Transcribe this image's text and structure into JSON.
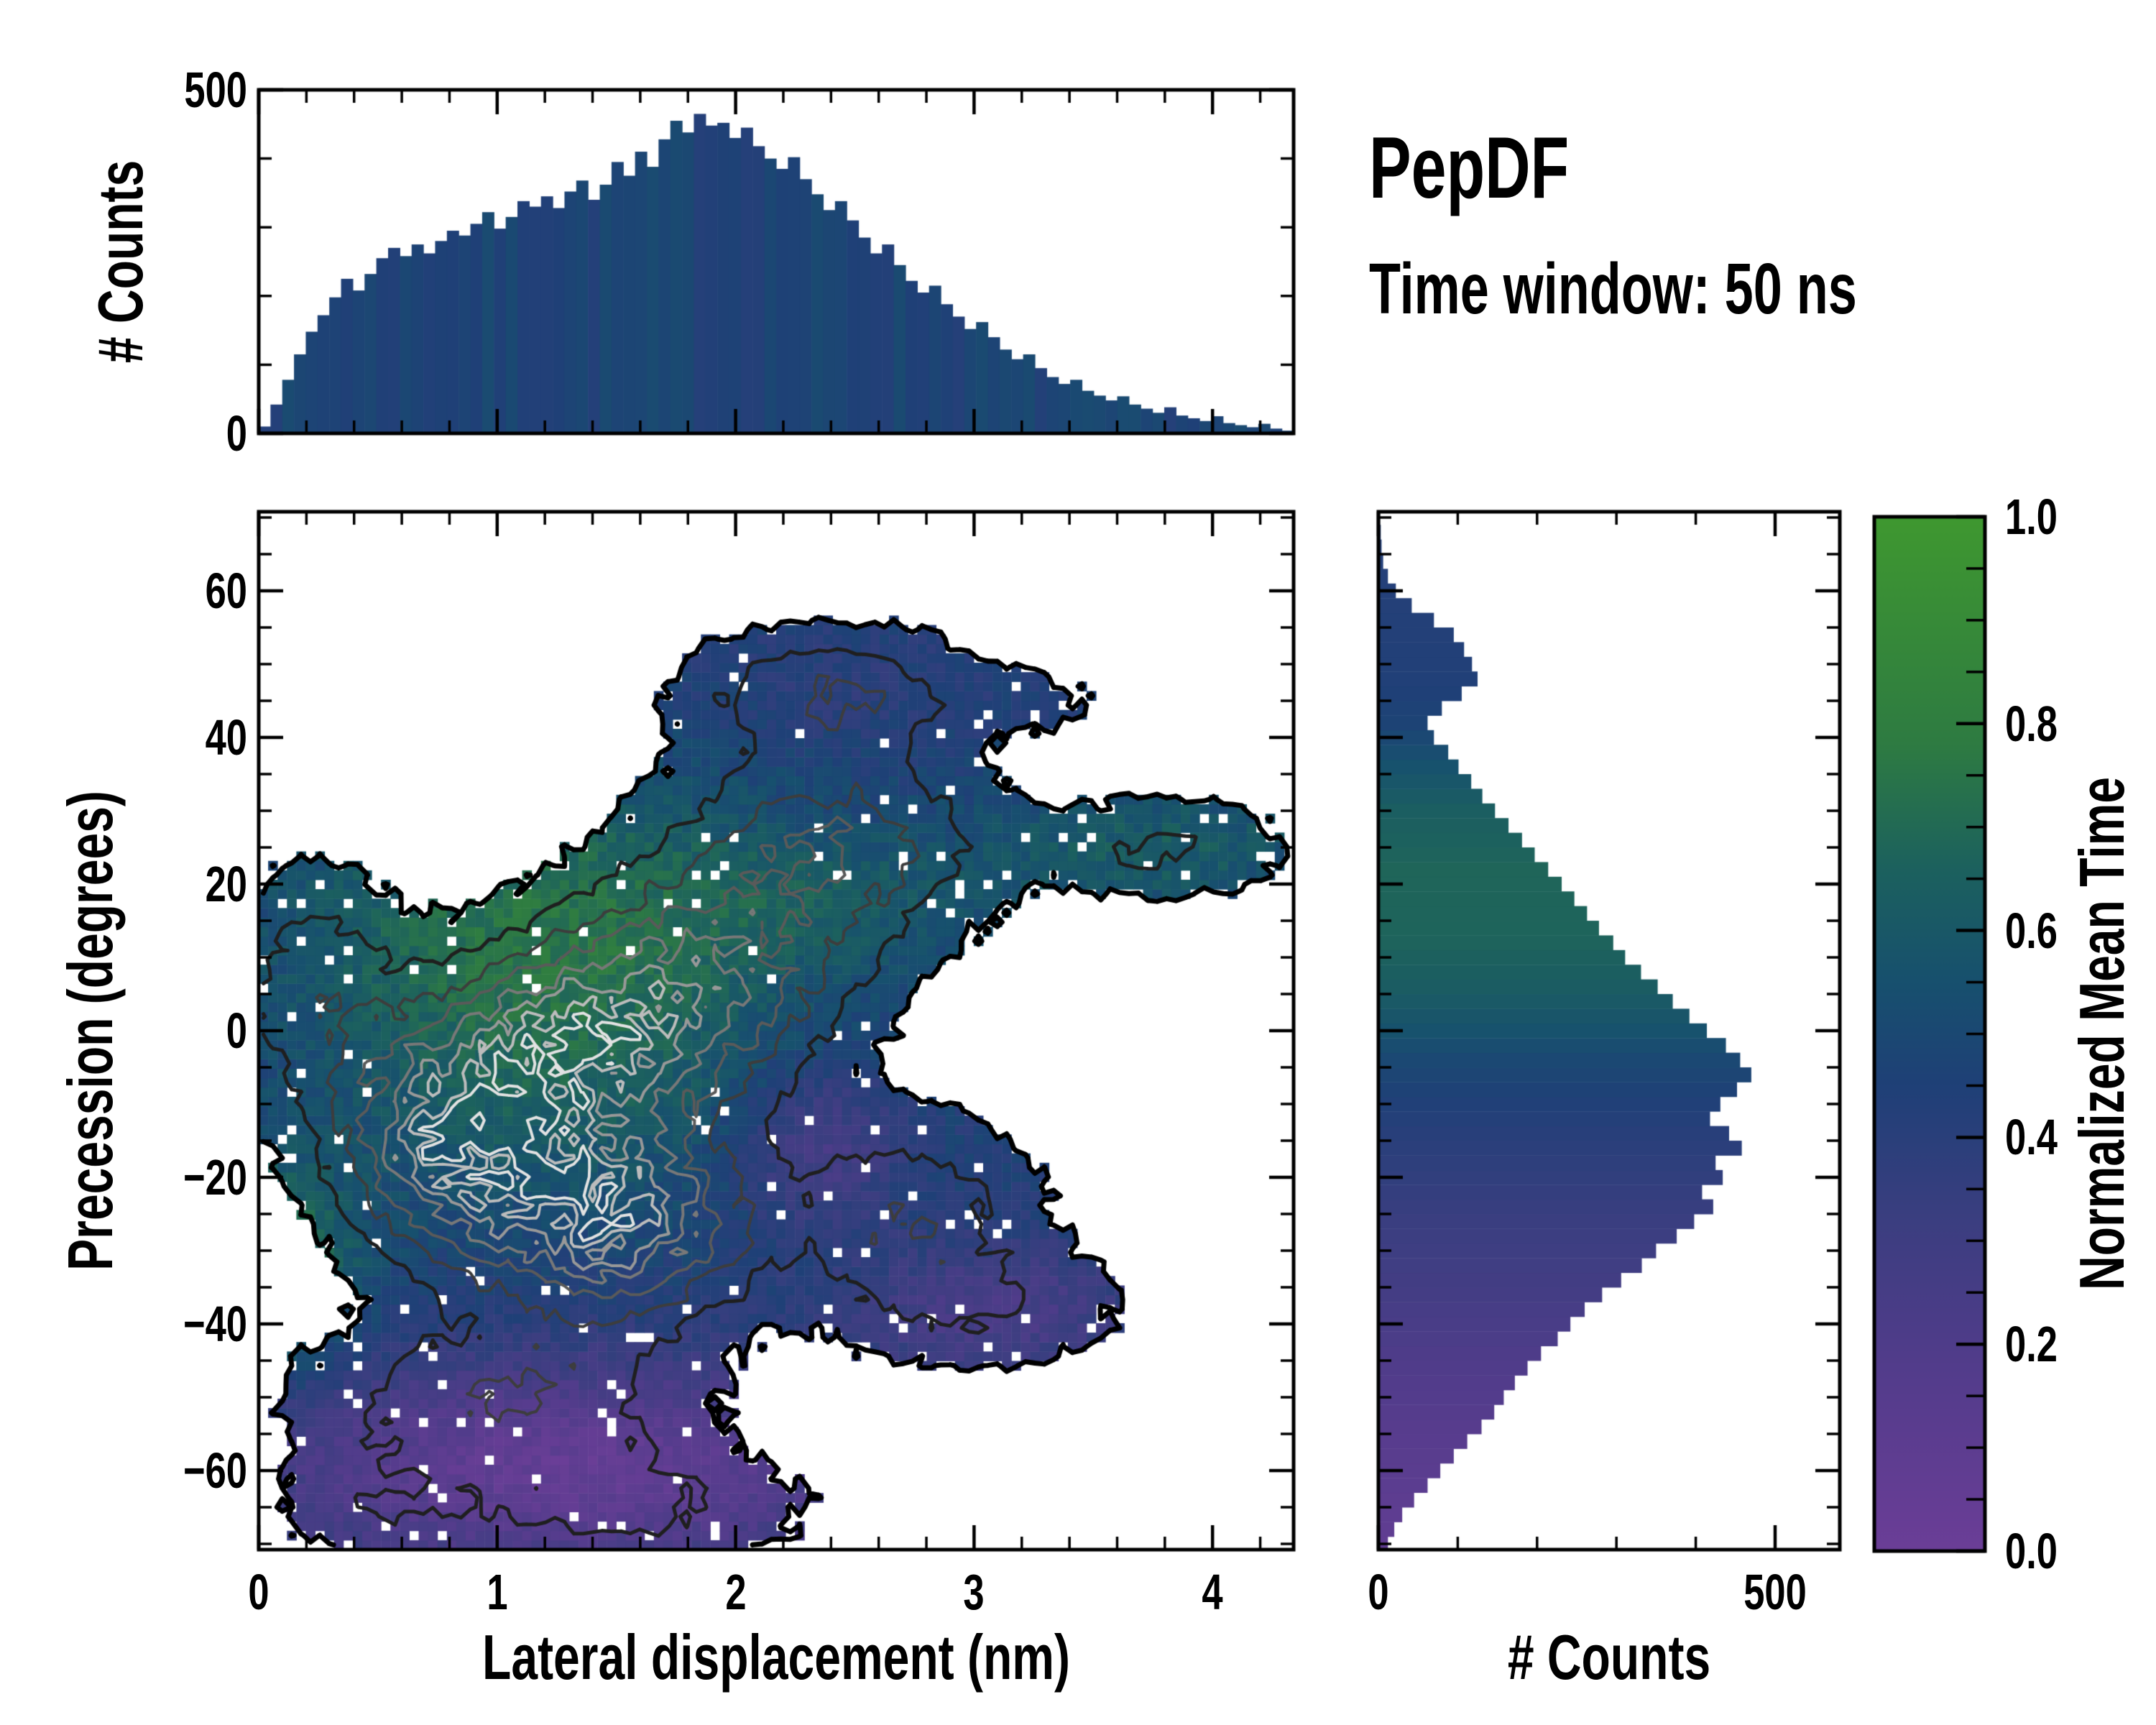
{
  "title": {
    "heading": "PepDF",
    "subtitle": "Time window: 50 ns"
  },
  "chart_data": {
    "top_histogram": {
      "type": "bar",
      "orientation": "vertical",
      "ylabel": "# Counts",
      "yticks": [
        "0",
        "500"
      ],
      "ylim": [
        0,
        500
      ],
      "xlim": [
        0,
        4.34
      ],
      "x_start": 0.0247,
      "bin_width_nm": 0.0493,
      "tint_base": 0.47,
      "tint_noise": 0.1,
      "values": [
        10,
        42,
        78,
        115,
        148,
        172,
        198,
        225,
        208,
        232,
        255,
        270,
        258,
        275,
        262,
        280,
        295,
        288,
        305,
        322,
        298,
        315,
        338,
        330,
        345,
        328,
        352,
        368,
        340,
        362,
        395,
        375,
        410,
        388,
        428,
        455,
        438,
        465,
        448,
        452,
        430,
        445,
        418,
        400,
        385,
        402,
        370,
        348,
        325,
        338,
        310,
        285,
        262,
        275,
        245,
        222,
        205,
        215,
        188,
        170,
        152,
        162,
        140,
        122,
        108,
        115,
        95,
        82,
        72,
        78,
        62,
        55,
        48,
        54,
        42,
        36,
        30,
        38,
        26,
        22,
        18,
        25,
        15,
        12,
        9,
        14,
        7,
        4
      ]
    },
    "main_heatmap": {
      "type": "heatmap",
      "xlabel": "Lateral displacement (nm)",
      "ylabel": "Precession (degrees)",
      "xticks": [
        "0",
        "1",
        "2",
        "3",
        "4"
      ],
      "yticks": [
        "60",
        "40",
        "20",
        "0",
        "−20",
        "−40",
        "−60"
      ],
      "xlim": [
        0,
        4.34
      ],
      "ylim": [
        -71,
        71
      ],
      "nx": 110,
      "ny": 110,
      "color_meaning": "normalized mean time per bin",
      "contour_meaning": "counts density contours, black (outer) to white (peak)",
      "seed": 42,
      "occupancy_threshold": 0.055,
      "hole_fraction": 0.035,
      "density_noise": 0.6,
      "time_base": 0.44,
      "time_noise": 0.12,
      "density_gaussians": [
        [
          1.0,
          0.85,
          -15,
          0.45,
          14
        ],
        [
          0.95,
          1.5,
          -26,
          0.5,
          12
        ],
        [
          0.85,
          1.35,
          -2,
          0.55,
          13
        ],
        [
          0.55,
          1.9,
          8,
          0.55,
          14
        ],
        [
          0.45,
          2.4,
          25,
          0.6,
          12
        ],
        [
          0.35,
          2.4,
          46,
          0.55,
          8
        ],
        [
          0.32,
          2.7,
          -25,
          0.5,
          12
        ],
        [
          0.35,
          1.0,
          -50,
          0.7,
          10
        ],
        [
          0.25,
          1.5,
          -65,
          0.7,
          8
        ],
        [
          0.3,
          0.25,
          5,
          0.35,
          15
        ],
        [
          0.22,
          3.8,
          25,
          0.45,
          6.5
        ],
        [
          0.08,
          3.3,
          45,
          0.3,
          5
        ],
        [
          0.18,
          3.05,
          -38,
          0.55,
          8
        ],
        [
          0.15,
          0.5,
          -65,
          0.4,
          8
        ]
      ],
      "time_components": [
        [
          0.3,
          1.2,
          14,
          1.1,
          22
        ],
        [
          0.12,
          1.2,
          -12,
          1.0,
          18
        ],
        [
          0.1,
          2.5,
          18,
          0.8,
          10
        ],
        [
          0.38,
          0.0,
          -33,
          0.38,
          14
        ],
        [
          0.18,
          3.8,
          25,
          0.8,
          10
        ],
        [
          -0.38,
          1.3,
          -60,
          1.4,
          15
        ],
        [
          -0.22,
          2.35,
          -16,
          0.35,
          11
        ],
        [
          -0.2,
          3.1,
          -38,
          0.6,
          9
        ],
        [
          -0.05,
          2.4,
          46,
          0.6,
          9
        ]
      ],
      "contour_levels": [
        0.055,
        0.16,
        0.28,
        0.4,
        0.53,
        0.66,
        0.78,
        0.88
      ],
      "contour_colors": [
        "#000000",
        "#1f1f1f",
        "#3d3d3d",
        "#5a5a5a",
        "#787878",
        "#989898",
        "#bcbcbc",
        "#e2e2e2"
      ],
      "contour_widths": [
        7,
        5,
        4,
        4,
        4,
        4,
        4,
        4
      ]
    },
    "right_histogram": {
      "type": "bar",
      "orientation": "horizontal",
      "xlabel": "# Counts",
      "xticks": [
        "0",
        "500"
      ],
      "xlim": [
        0,
        581
      ],
      "y_start": -70,
      "bin_width_deg": 2,
      "color_meaning": "bars tinted by normalized mean time of each precession row",
      "time_profile": [
        [
          -70,
          0.08
        ],
        [
          -55,
          0.14
        ],
        [
          -45,
          0.2
        ],
        [
          -35,
          0.27
        ],
        [
          -25,
          0.33
        ],
        [
          -18,
          0.38
        ],
        [
          -10,
          0.44
        ],
        [
          -4,
          0.5
        ],
        [
          0,
          0.56
        ],
        [
          6,
          0.63
        ],
        [
          12,
          0.67
        ],
        [
          22,
          0.68
        ],
        [
          30,
          0.64
        ],
        [
          36,
          0.56
        ],
        [
          42,
          0.47
        ],
        [
          48,
          0.44
        ],
        [
          56,
          0.43
        ],
        [
          70,
          0.42
        ]
      ],
      "values": [
        12,
        20,
        30,
        45,
        62,
        78,
        95,
        112,
        130,
        146,
        158,
        172,
        188,
        205,
        226,
        242,
        260,
        282,
        306,
        332,
        350,
        376,
        398,
        422,
        408,
        434,
        425,
        458,
        442,
        418,
        431,
        452,
        470,
        456,
        438,
        414,
        392,
        371,
        352,
        331,
        311,
        296,
        278,
        263,
        247,
        231,
        214,
        197,
        181,
        164,
        147,
        131,
        117,
        101,
        88,
        70,
        62,
        80,
        105,
        125,
        118,
        108,
        95,
        70,
        42,
        22,
        12,
        6,
        4,
        3,
        2
      ]
    },
    "colorbar": {
      "label": "Normalized Mean Time",
      "ticks": [
        "1.0",
        "0.8",
        "0.6",
        "0.4",
        "0.2",
        "0.0"
      ],
      "range": [
        0,
        1
      ],
      "major_tick_step": 0.2,
      "minor_tick_step": 0.05,
      "stops": [
        [
          0.0,
          "#6b3e97"
        ],
        [
          0.18,
          "#523c8b"
        ],
        [
          0.32,
          "#3b3e80"
        ],
        [
          0.45,
          "#1f4077"
        ],
        [
          0.55,
          "#17506e"
        ],
        [
          0.66,
          "#1c615e"
        ],
        [
          0.78,
          "#2e7b42"
        ],
        [
          1.0,
          "#3f9830"
        ]
      ]
    }
  }
}
